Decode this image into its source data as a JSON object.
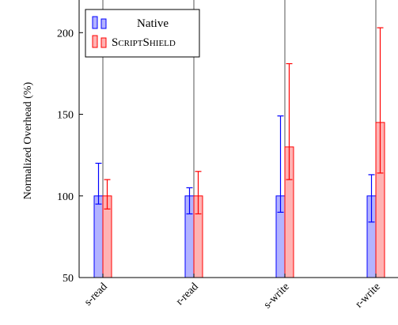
{
  "chart_data": {
    "type": "bar",
    "ylabel": "Normalized Overhead (%)",
    "xlabel": "",
    "ylim": [
      50,
      220
    ],
    "yticks": [
      50,
      100,
      150,
      200
    ],
    "categories": [
      "s-read",
      "r-read",
      "s-write",
      "r-write"
    ],
    "series": [
      {
        "name": "Native",
        "color": "#0000ff",
        "fill": "#b3b3ff",
        "values": [
          100,
          100,
          100,
          100
        ],
        "err_low": [
          95,
          89,
          90,
          84
        ],
        "err_high": [
          120,
          105,
          149,
          113
        ]
      },
      {
        "name": "ScriptShield",
        "color": "#ff0000",
        "fill": "#ffb3b3",
        "values": [
          100,
          100,
          130,
          145
        ],
        "err_low": [
          92,
          89,
          110,
          114
        ],
        "err_high": [
          110,
          115,
          181,
          203
        ]
      }
    ],
    "legend": "top-left",
    "grid": "vertical"
  }
}
